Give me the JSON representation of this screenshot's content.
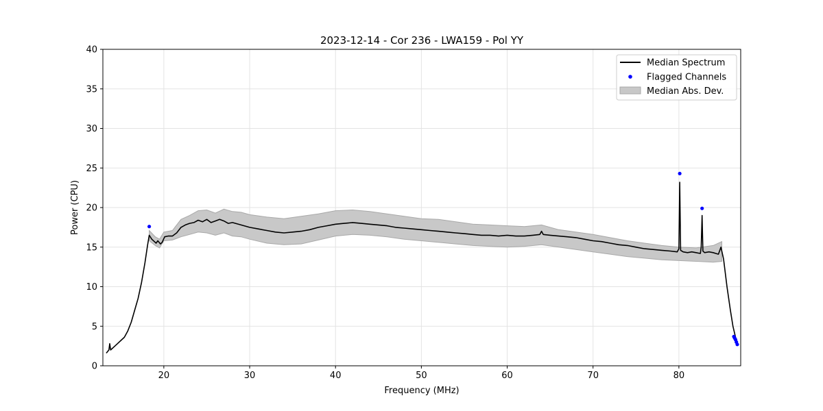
{
  "chart_data": {
    "type": "line",
    "title": "2023-12-14 - Cor 236 - LWA159 - Pol YY",
    "xlabel": "Frequency (MHz)",
    "ylabel": "Power (CPU)",
    "xlim": [
      12.9,
      87.2
    ],
    "ylim": [
      0,
      40
    ],
    "xticks": [
      20,
      30,
      40,
      50,
      60,
      70,
      80
    ],
    "yticks": [
      0,
      5,
      10,
      15,
      20,
      25,
      30,
      35,
      40
    ],
    "grid": true,
    "legend_position": "top-right",
    "legend": [
      {
        "label": "Median Spectrum",
        "kind": "line",
        "color": "#000000"
      },
      {
        "label": "Flagged Channels",
        "kind": "marker",
        "color": "#0000ff"
      },
      {
        "label": "Median Abs. Dev.",
        "kind": "patch",
        "color": "#c8c8c8"
      }
    ],
    "series": [
      {
        "name": "Median Spectrum",
        "kind": "line",
        "color": "#000000",
        "x": [
          13.3,
          13.6,
          13.7,
          13.8,
          14.2,
          14.6,
          15.0,
          15.4,
          15.8,
          16.2,
          16.6,
          17.0,
          17.4,
          17.8,
          18.1,
          18.3,
          18.6,
          18.9,
          19.1,
          19.3,
          19.6,
          19.8,
          20.1,
          20.5,
          21.0,
          21.5,
          22.0,
          22.5,
          23.0,
          23.5,
          24.0,
          24.5,
          25.0,
          25.5,
          26.0,
          26.5,
          27.0,
          27.5,
          28.0,
          29.0,
          30.0,
          31.0,
          32.0,
          33.0,
          34.0,
          35.0,
          36.0,
          37.0,
          38.0,
          39.0,
          40.0,
          41.0,
          42.0,
          43.0,
          44.0,
          45.0,
          46.0,
          47.0,
          48.0,
          49.0,
          50.0,
          51.0,
          52.0,
          53.0,
          54.0,
          55.0,
          56.0,
          57.0,
          58.0,
          59.0,
          60.0,
          61.0,
          62.0,
          63.0,
          63.8,
          64.0,
          64.2,
          65.0,
          66.0,
          67.0,
          68.0,
          69.0,
          70.0,
          71.0,
          72.0,
          73.0,
          74.0,
          75.0,
          76.0,
          77.0,
          78.0,
          79.0,
          79.8,
          80.0,
          80.1,
          80.2,
          80.5,
          81.0,
          81.5,
          82.0,
          82.5,
          82.6,
          82.7,
          82.8,
          83.0,
          83.5,
          84.0,
          84.3,
          84.6,
          84.9,
          85.2,
          85.6,
          86.0,
          86.3,
          86.6,
          86.8
        ],
        "y": [
          1.6,
          2.0,
          2.8,
          2.0,
          2.4,
          2.8,
          3.2,
          3.6,
          4.4,
          5.5,
          7.0,
          8.5,
          10.5,
          13.0,
          15.2,
          16.5,
          16.0,
          15.7,
          15.5,
          15.8,
          15.4,
          15.6,
          16.3,
          16.4,
          16.4,
          16.8,
          17.5,
          17.8,
          18.0,
          18.1,
          18.4,
          18.2,
          18.5,
          18.1,
          18.3,
          18.5,
          18.3,
          18.0,
          18.1,
          17.8,
          17.5,
          17.3,
          17.1,
          16.9,
          16.8,
          16.9,
          17.0,
          17.2,
          17.5,
          17.7,
          17.9,
          18.0,
          18.1,
          18.0,
          17.9,
          17.8,
          17.7,
          17.5,
          17.4,
          17.3,
          17.2,
          17.1,
          17.0,
          16.9,
          16.8,
          16.7,
          16.6,
          16.5,
          16.5,
          16.4,
          16.5,
          16.4,
          16.4,
          16.5,
          16.6,
          17.0,
          16.6,
          16.5,
          16.4,
          16.3,
          16.2,
          16.0,
          15.8,
          15.7,
          15.5,
          15.3,
          15.2,
          15.0,
          14.8,
          14.7,
          14.6,
          14.5,
          14.4,
          14.8,
          23.2,
          14.6,
          14.4,
          14.3,
          14.4,
          14.3,
          14.2,
          15.0,
          19.0,
          14.5,
          14.3,
          14.4,
          14.3,
          14.2,
          14.1,
          15.0,
          13.5,
          10.0,
          7.0,
          5.0,
          3.6,
          2.8
        ]
      },
      {
        "name": "Median Abs. Dev.",
        "kind": "band",
        "color": "#c8c8c8",
        "x": [
          18.3,
          19.0,
          19.5,
          20.0,
          21.0,
          22.0,
          23.0,
          24.0,
          25.0,
          26.0,
          27.0,
          28.0,
          29.0,
          30.0,
          32.0,
          34.0,
          36.0,
          38.0,
          40.0,
          42.0,
          44.0,
          46.0,
          48.0,
          50.0,
          52.0,
          54.0,
          56.0,
          58.0,
          60.0,
          62.0,
          64.0,
          66.0,
          68.0,
          70.0,
          72.0,
          74.0,
          76.0,
          78.0,
          80.0,
          82.0,
          84.0,
          85.0
        ],
        "lower": [
          15.8,
          15.2,
          14.9,
          15.8,
          15.9,
          16.3,
          16.6,
          16.9,
          16.8,
          16.5,
          16.8,
          16.4,
          16.3,
          16.0,
          15.5,
          15.3,
          15.4,
          15.9,
          16.4,
          16.6,
          16.5,
          16.3,
          16.0,
          15.8,
          15.6,
          15.4,
          15.2,
          15.1,
          15.0,
          15.1,
          15.3,
          15.0,
          14.7,
          14.4,
          14.1,
          13.8,
          13.6,
          13.4,
          13.3,
          13.2,
          13.1,
          13.2
        ],
        "upper": [
          17.1,
          16.3,
          16.0,
          16.9,
          17.1,
          18.5,
          19.0,
          19.6,
          19.7,
          19.3,
          19.8,
          19.5,
          19.4,
          19.1,
          18.8,
          18.6,
          18.9,
          19.2,
          19.6,
          19.7,
          19.5,
          19.2,
          18.9,
          18.6,
          18.5,
          18.2,
          17.9,
          17.8,
          17.7,
          17.6,
          17.8,
          17.2,
          16.9,
          16.6,
          16.2,
          15.8,
          15.5,
          15.2,
          15.0,
          14.9,
          15.2,
          15.7
        ]
      },
      {
        "name": "Flagged Channels",
        "kind": "scatter",
        "color": "#0000ff",
        "x": [
          18.3,
          80.1,
          82.7,
          86.4,
          86.5,
          86.6,
          86.7,
          86.8
        ],
        "y": [
          17.6,
          24.3,
          19.9,
          3.7,
          3.5,
          3.3,
          3.0,
          2.7
        ]
      }
    ]
  }
}
